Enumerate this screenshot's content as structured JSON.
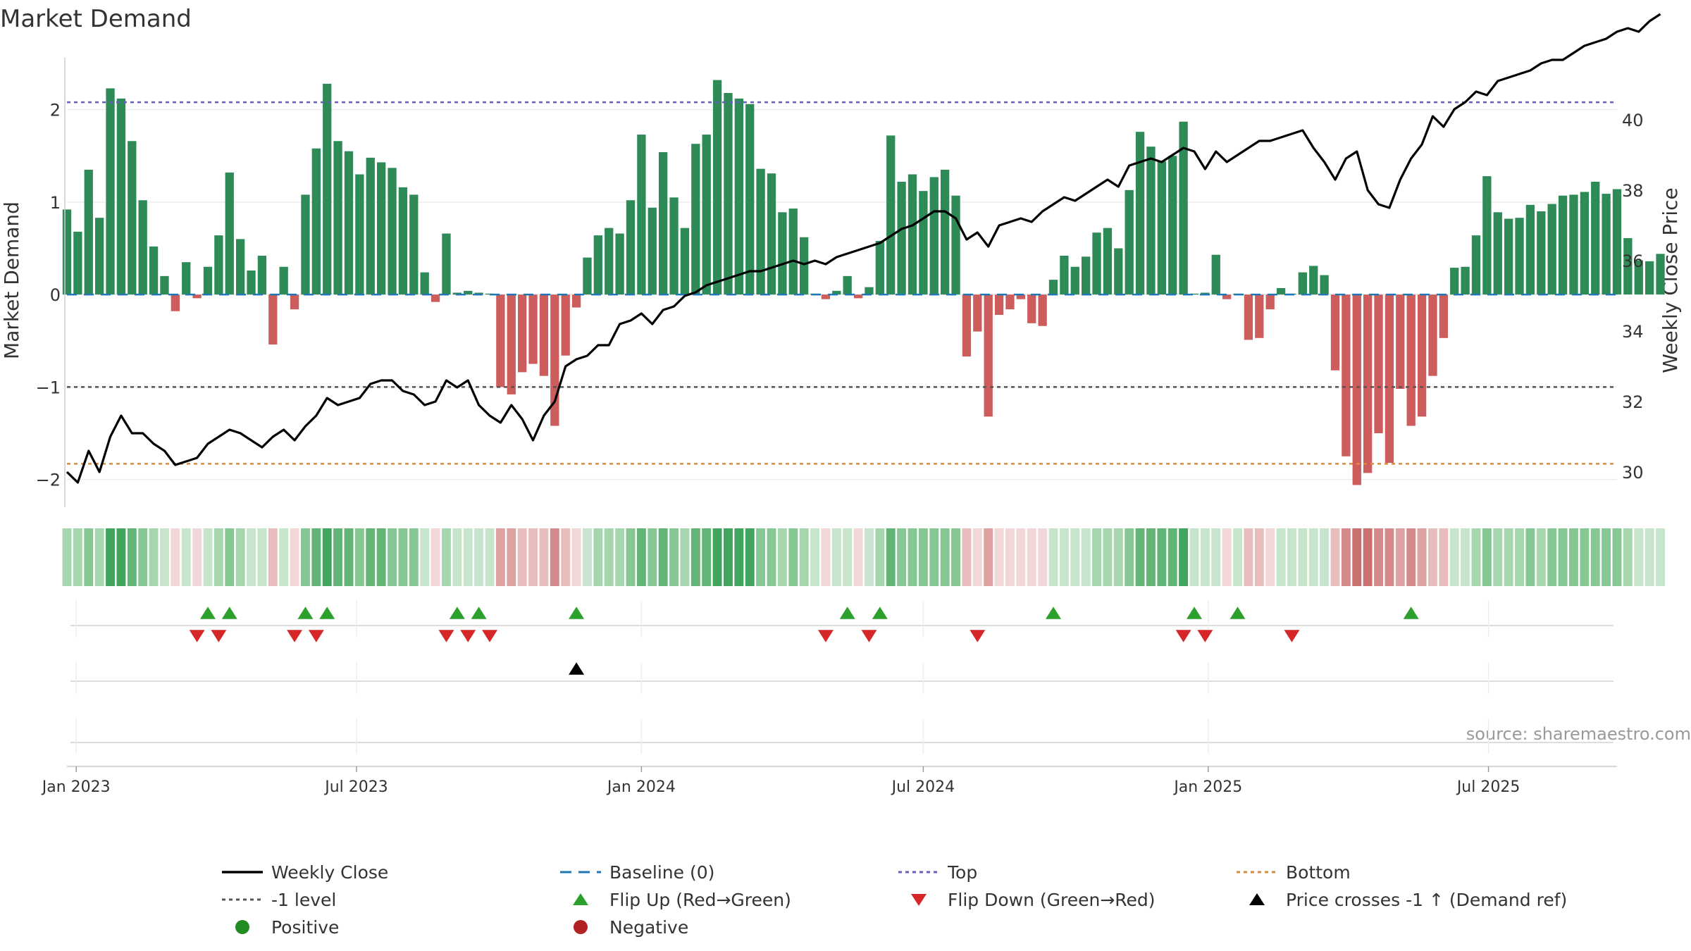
{
  "title": "Market Demand",
  "source": "source: sharemaestro.com",
  "colors": {
    "positive_bar": "#2e8b57",
    "negative_bar": "#cd5c5c",
    "price_line": "#000000",
    "baseline": "#1f77b4",
    "top_line": "#6a5acd",
    "minus1_line": "#555555",
    "bottom_line": "#e08a2c",
    "flip_up": "#2ca02c",
    "flip_down": "#d62728",
    "cross": "#000000",
    "positive_dot": "#228b22",
    "negative_dot": "#b22222"
  },
  "chart_data": {
    "type": "bar",
    "title": "Market Demand",
    "x_start": "2022-12-26",
    "x_step_days": 7,
    "x_range": [
      "2022-12-26",
      "2025-09-22"
    ],
    "x_ticks": [
      {
        "date": "2023-01-01",
        "label": "Jan 2023"
      },
      {
        "date": "2023-07-01",
        "label": "Jul 2023"
      },
      {
        "date": "2024-01-01",
        "label": "Jan 2024"
      },
      {
        "date": "2024-07-01",
        "label": "Jul 2024"
      },
      {
        "date": "2025-01-01",
        "label": "Jan 2025"
      },
      {
        "date": "2025-07-01",
        "label": "Jul 2025"
      }
    ],
    "left_axis": {
      "label": "Market Demand",
      "ylim": [
        -2.3,
        2.5
      ],
      "ticks": [
        2,
        1,
        0,
        -1,
        -2
      ],
      "tick_labels": [
        "2",
        "1",
        "0",
        "−1",
        "−2"
      ]
    },
    "right_axis": {
      "label": "Weekly Close Price",
      "ylim": [
        29.0,
        41.6
      ],
      "ticks": [
        30,
        32,
        34,
        36,
        38,
        40
      ],
      "tick_labels": [
        "30",
        "32",
        "34",
        "36",
        "38",
        "40"
      ]
    },
    "reference_lines": {
      "baseline": 0,
      "top": 2.08,
      "minus1": -1,
      "bottom": -1.83
    },
    "demand": [
      0.92,
      0.68,
      1.35,
      0.83,
      2.23,
      2.12,
      1.66,
      1.02,
      0.52,
      0.2,
      -0.18,
      0.35,
      -0.04,
      0.3,
      0.64,
      1.32,
      0.6,
      0.26,
      0.42,
      -0.54,
      0.3,
      -0.16,
      1.08,
      1.58,
      2.28,
      1.66,
      1.55,
      1.3,
      1.48,
      1.43,
      1.37,
      1.16,
      1.08,
      0.24,
      -0.08,
      0.66,
      0.02,
      0.04,
      0.02,
      0.01,
      -1.0,
      -1.08,
      -0.84,
      -0.75,
      -0.88,
      -1.42,
      -0.66,
      -0.14,
      0.4,
      0.64,
      0.72,
      0.66,
      1.02,
      1.73,
      0.94,
      1.54,
      1.05,
      0.72,
      1.63,
      1.73,
      2.32,
      2.18,
      2.12,
      2.06,
      1.36,
      1.31,
      0.89,
      0.93,
      0.62,
      0.01,
      -0.05,
      0.04,
      0.2,
      -0.04,
      0.08,
      0.58,
      1.72,
      1.22,
      1.3,
      1.12,
      1.27,
      1.35,
      1.07,
      -0.67,
      -0.4,
      -1.32,
      -0.22,
      -0.16,
      -0.05,
      -0.31,
      -0.34,
      0.16,
      0.42,
      0.3,
      0.41,
      0.67,
      0.72,
      0.5,
      1.13,
      1.76,
      1.6,
      1.44,
      1.5,
      1.87,
      0.01,
      0.02,
      0.43,
      -0.05,
      0.01,
      -0.49,
      -0.47,
      -0.16,
      0.07,
      0.01,
      0.24,
      0.31,
      0.21,
      -0.82,
      -1.75,
      -2.06,
      -1.93,
      -1.5,
      -1.82,
      -1.02,
      -1.42,
      -1.32,
      -0.88,
      -0.47,
      0.29,
      0.3,
      0.64,
      1.28,
      0.89,
      0.82,
      0.83,
      0.97,
      0.9,
      0.98,
      1.07,
      1.08,
      1.11,
      1.22,
      1.09,
      1.14,
      0.61,
      0.37,
      0.36,
      0.44
    ],
    "price": [
      30.0,
      29.7,
      30.6,
      30.0,
      31.0,
      31.6,
      31.1,
      31.1,
      30.8,
      30.6,
      30.2,
      30.3,
      30.4,
      30.8,
      31.0,
      31.2,
      31.1,
      30.9,
      30.7,
      31.0,
      31.2,
      30.9,
      31.3,
      31.6,
      32.1,
      31.9,
      32.0,
      32.1,
      32.5,
      32.6,
      32.6,
      32.3,
      32.2,
      31.9,
      32.0,
      32.6,
      32.4,
      32.6,
      31.9,
      31.6,
      31.4,
      31.9,
      31.5,
      30.9,
      31.6,
      32.0,
      33.0,
      33.2,
      33.3,
      33.6,
      33.6,
      34.2,
      34.3,
      34.5,
      34.2,
      34.6,
      34.7,
      35.0,
      35.1,
      35.3,
      35.4,
      35.5,
      35.6,
      35.7,
      35.7,
      35.8,
      35.9,
      36.0,
      35.9,
      36.0,
      35.9,
      36.1,
      36.2,
      36.3,
      36.4,
      36.5,
      36.7,
      36.9,
      37.0,
      37.2,
      37.4,
      37.4,
      37.2,
      36.6,
      36.8,
      36.4,
      37.0,
      37.1,
      37.2,
      37.1,
      37.4,
      37.6,
      37.8,
      37.7,
      37.9,
      38.1,
      38.3,
      38.1,
      38.7,
      38.8,
      38.9,
      38.8,
      39.0,
      39.2,
      39.1,
      38.6,
      39.1,
      38.8,
      39.0,
      39.2,
      39.4,
      39.4,
      39.5,
      39.6,
      39.7,
      39.2,
      38.8,
      38.3,
      38.9,
      39.1,
      38.0,
      37.6,
      37.5,
      38.3,
      38.9,
      39.3,
      40.1,
      39.8,
      40.3,
      40.5,
      40.8,
      40.7,
      41.1,
      41.2,
      41.3,
      41.4,
      41.6,
      41.7,
      41.7,
      41.9,
      42.1,
      42.2,
      42.3,
      42.5,
      42.6,
      42.5,
      42.8,
      43.0
    ],
    "flip_up_dates": [
      "2023-03-27",
      "2023-04-10",
      "2023-05-29",
      "2023-06-12",
      "2023-09-04",
      "2023-09-18",
      "2023-11-20",
      "2024-05-13",
      "2024-06-03",
      "2024-09-23",
      "2024-12-23",
      "2025-01-20",
      "2025-05-12"
    ],
    "flip_down_dates": [
      "2023-03-20",
      "2023-04-03",
      "2023-05-22",
      "2023-06-05",
      "2023-08-28",
      "2023-09-11",
      "2023-09-25",
      "2024-04-29",
      "2024-05-27",
      "2024-08-05",
      "2024-12-16",
      "2024-12-30",
      "2025-02-24"
    ],
    "cross_dates": [
      "2023-11-20"
    ]
  },
  "legend": [
    {
      "label": "Weekly Close",
      "kind": "line-solid",
      "color": "#000000"
    },
    {
      "label": "Baseline (0)",
      "kind": "line-dash",
      "color": "#1f77b4"
    },
    {
      "label": "Top",
      "kind": "line-dot",
      "color": "#6a5acd"
    },
    {
      "label": "Bottom",
      "kind": "line-dot",
      "color": "#e08a2c"
    },
    {
      "label": "-1 level",
      "kind": "line-dot",
      "color": "#555555"
    },
    {
      "label": "Flip Up (Red→Green)",
      "kind": "tri-up",
      "color": "#2ca02c"
    },
    {
      "label": "Flip Down (Green→Red)",
      "kind": "tri-down",
      "color": "#d62728"
    },
    {
      "label": "Price crosses -1 ↑ (Demand ref)",
      "kind": "tri-up",
      "color": "#000000"
    },
    {
      "label": "Positive",
      "kind": "dot",
      "color": "#228b22"
    },
    {
      "label": "Negative",
      "kind": "dot",
      "color": "#b22222"
    }
  ]
}
